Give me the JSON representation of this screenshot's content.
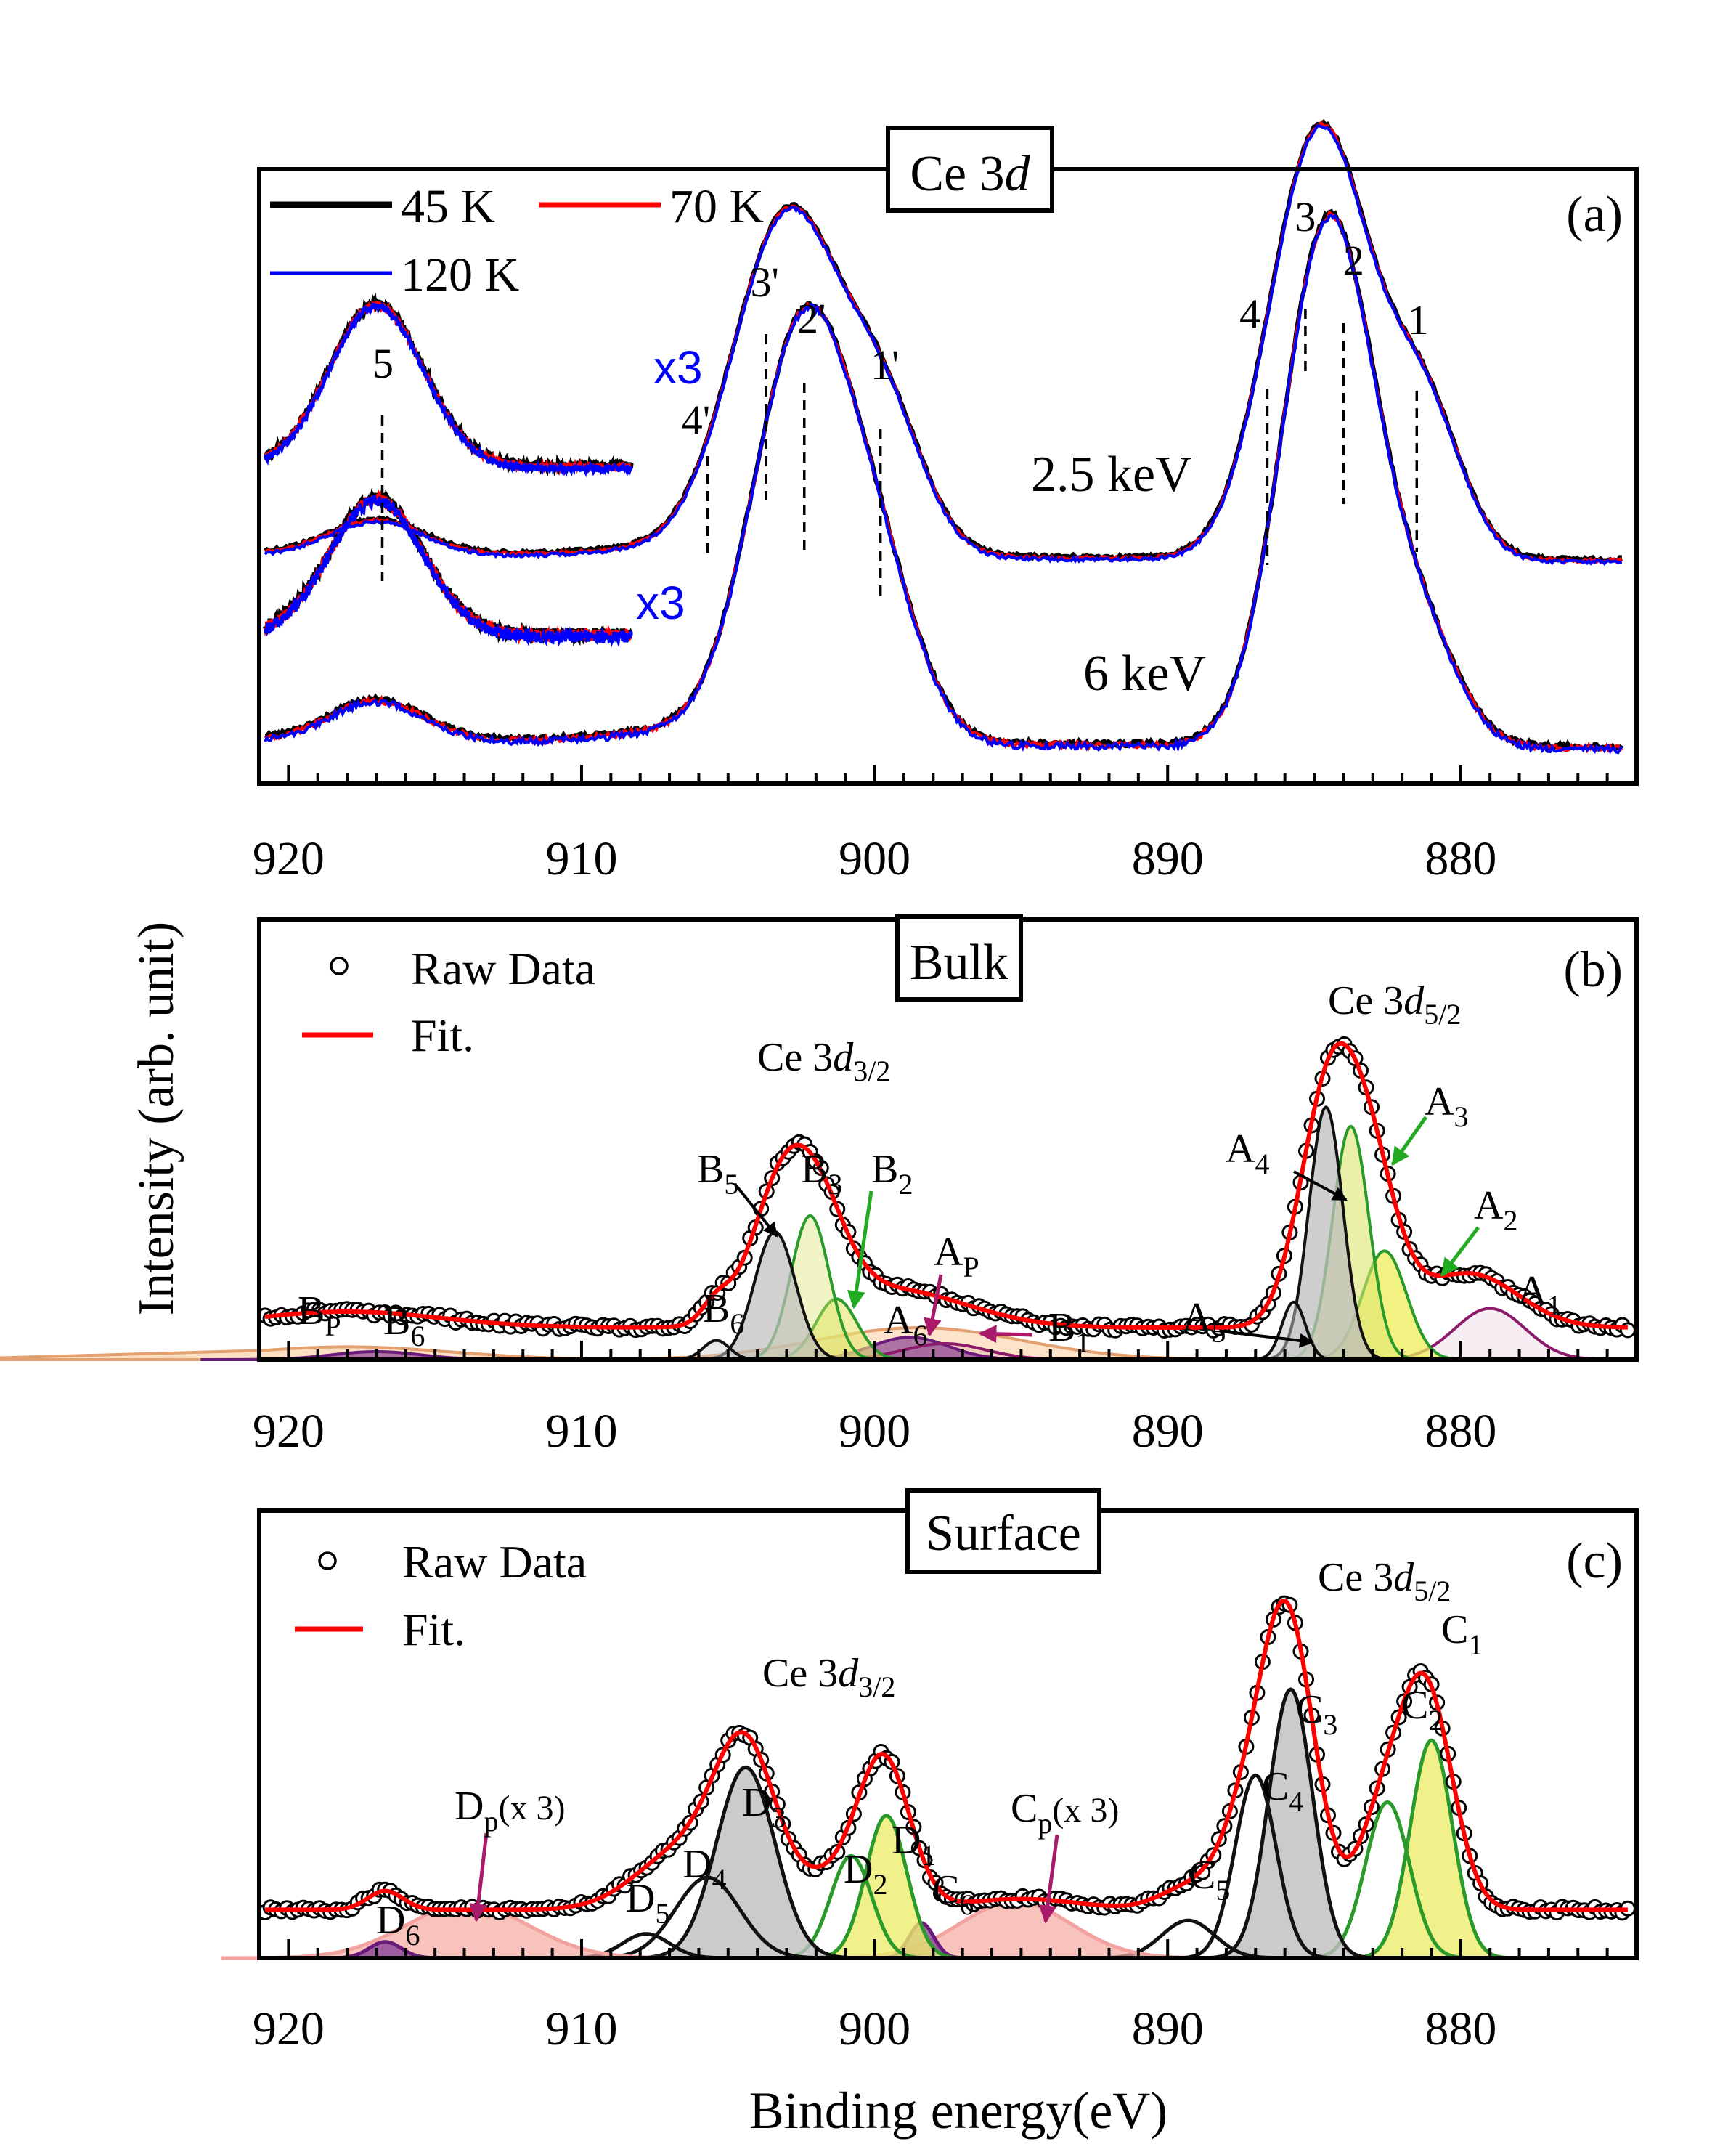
{
  "chart_data": [
    {
      "id": "a",
      "type": "line",
      "panel_label": "(a)",
      "title": "Ce 3",
      "title_italic": "d",
      "xlabel": "",
      "xlim": [
        921,
        874
      ],
      "xticks": [
        920,
        910,
        900,
        890,
        880
      ],
      "legend_entries": [
        {
          "name": "45 K",
          "color": "#000000"
        },
        {
          "name": "70 K",
          "color": "#ff0000"
        },
        {
          "name": "120 K",
          "color": "#0000ff"
        }
      ],
      "series": [
        {
          "name": "2.5 keV",
          "peaks_eV": [
            917,
            903.7,
            902.3,
            899.8,
            885.2,
            883.9,
            881.3
          ]
        },
        {
          "name": "6 keV",
          "peaks_eV": [
            917,
            902.5,
            899.8,
            884.8
          ]
        }
      ],
      "peak_markers": [
        {
          "label": "5",
          "x": 916.8
        },
        {
          "label": "4'",
          "x": 905.7
        },
        {
          "label": "3'",
          "x": 903.7
        },
        {
          "label": "2'",
          "x": 902.4
        },
        {
          "label": "1'",
          "x": 899.8
        },
        {
          "label": "4",
          "x": 886.6
        },
        {
          "label": "3",
          "x": 885.3
        },
        {
          "label": "2",
          "x": 884.0
        },
        {
          "label": "1",
          "x": 881.5
        }
      ],
      "annotations": [
        "2.5 keV",
        "6 keV",
        "x3",
        "x3"
      ]
    },
    {
      "id": "b",
      "type": "line",
      "panel_label": "(b)",
      "title": "Bulk",
      "xlim": [
        921,
        874
      ],
      "xticks": [
        920,
        910,
        900,
        890,
        880
      ],
      "legend_entries": [
        "Raw Data",
        "Fit."
      ],
      "group_labels": [
        {
          "text": "Ce 3",
          "italic": "d",
          "sub": "3/2"
        },
        {
          "text": "Ce 3",
          "italic": "d",
          "sub": "5/2"
        }
      ],
      "components": [
        {
          "label": "A",
          "sub": "1",
          "center": 879.0,
          "color": "#8b1a6b"
        },
        {
          "label": "A",
          "sub": "2",
          "center": 882.5,
          "color": "#2a9a2a"
        },
        {
          "label": "A",
          "sub": "3",
          "center": 883.7,
          "color": "#2a9a2a"
        },
        {
          "label": "A",
          "sub": "4",
          "center": 884.6,
          "color": "#111111"
        },
        {
          "label": "A",
          "sub": "5",
          "center": 885.7,
          "color": "#111111"
        },
        {
          "label": "A",
          "sub": "6",
          "center": 898.8,
          "color": "#6a1a7a"
        },
        {
          "label": "A",
          "sub": "P",
          "center": 898.5,
          "color": "#e08a50"
        },
        {
          "label": "B",
          "sub": "1",
          "center": 897.5,
          "color": "#8b1a6b"
        },
        {
          "label": "B",
          "sub": "2",
          "center": 901.3,
          "color": "#2a9a2a"
        },
        {
          "label": "B",
          "sub": "3",
          "center": 902.2,
          "color": "#2a9a2a"
        },
        {
          "label": "B",
          "sub": "5",
          "center": 903.4,
          "color": "#111111"
        },
        {
          "label": "B",
          "sub": "6",
          "center": 905.5,
          "color": "#111111"
        },
        {
          "label": "B",
          "sub": "P",
          "center": 918.0,
          "color": "#e08a50"
        },
        {
          "label": "B",
          "sub": "6",
          "center": 917.0,
          "color": "#6a1a7a"
        }
      ]
    },
    {
      "id": "c",
      "type": "line",
      "panel_label": "(c)",
      "title": "Surface",
      "xlabel": "Binding energy(eV)",
      "xlim": [
        921,
        874
      ],
      "xticks": [
        920,
        910,
        900,
        890,
        880
      ],
      "legend_entries": [
        "Raw Data",
        "Fit."
      ],
      "group_labels": [
        {
          "text": "Ce 3",
          "italic": "d",
          "sub": "3/2"
        },
        {
          "text": "Ce 3",
          "italic": "d",
          "sub": "5/2"
        }
      ],
      "components": [
        {
          "label": "C",
          "sub": "1",
          "center": 881.0,
          "color": "#2a9a2a"
        },
        {
          "label": "C",
          "sub": "2",
          "center": 882.5,
          "color": "#2a9a2a"
        },
        {
          "label": "C",
          "sub": "3",
          "center": 885.8,
          "color": "#111111"
        },
        {
          "label": "C",
          "sub": "4",
          "center": 887.0,
          "color": "#111111"
        },
        {
          "label": "C",
          "sub": "5",
          "center": 889.3,
          "color": "#111111"
        },
        {
          "label": "C",
          "sub": "p",
          "suffix": "(x 3)",
          "center": 895.2,
          "color": "#f08070"
        },
        {
          "label": "C",
          "sub": "6",
          "center": 898.4,
          "color": "#6a1a7a"
        },
        {
          "label": "D",
          "sub": "1",
          "center": 899.6,
          "color": "#2a9a2a"
        },
        {
          "label": "D",
          "sub": "2",
          "center": 900.8,
          "color": "#2a9a2a"
        },
        {
          "label": "D",
          "sub": "3",
          "center": 904.4,
          "color": "#111111"
        },
        {
          "label": "D",
          "sub": "4",
          "center": 905.7,
          "color": "#111111"
        },
        {
          "label": "D",
          "sub": "5",
          "center": 907.8,
          "color": "#111111"
        },
        {
          "label": "D",
          "sub": "p",
          "suffix": "(x 3)",
          "center": 913.9,
          "color": "#f08070"
        },
        {
          "label": "D",
          "sub": "6",
          "center": 916.7,
          "color": "#6a1a7a"
        }
      ]
    }
  ],
  "ylabel": "Intensity (arb. unit)"
}
